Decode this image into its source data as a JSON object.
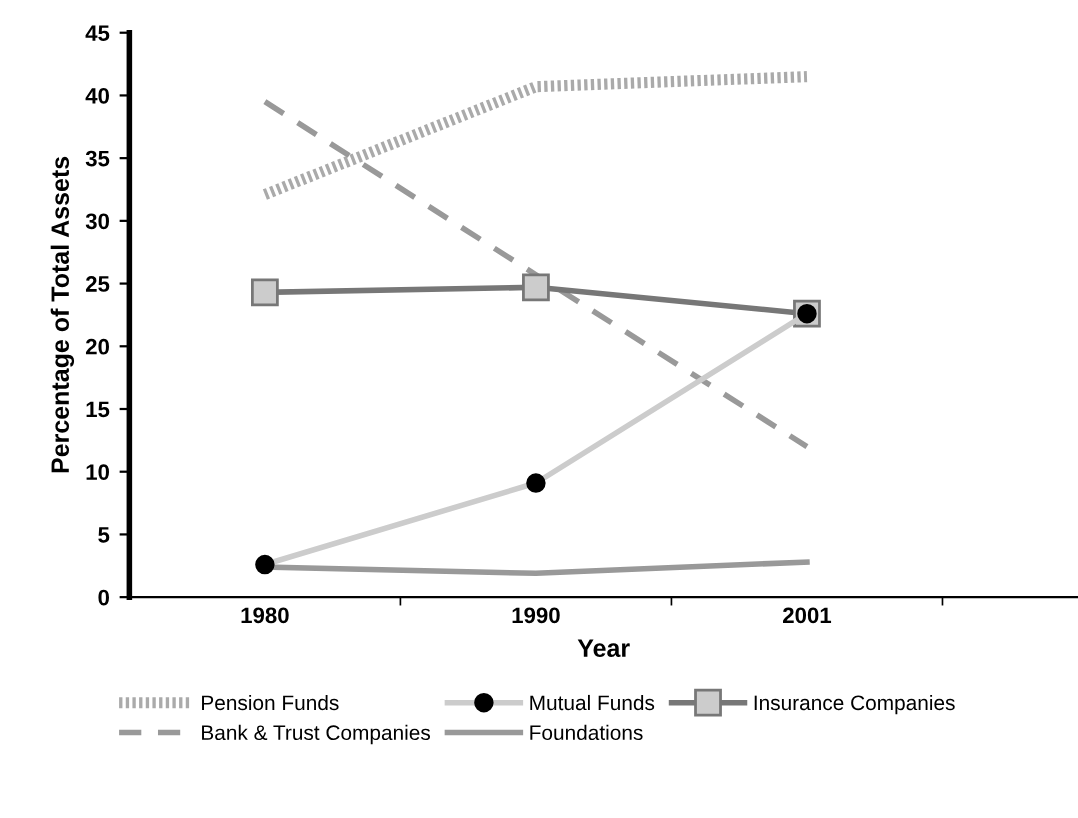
{
  "chart_data": {
    "type": "line",
    "xlabel": "Year",
    "ylabel": "Percentage of Total Assets",
    "categories": [
      "1980",
      "1990",
      "2001"
    ],
    "ylim": [
      0,
      45
    ],
    "yticks": [
      0,
      5,
      10,
      15,
      20,
      25,
      30,
      35,
      40,
      45
    ],
    "grid": false,
    "legend": "bottom",
    "series": [
      {
        "name": "Pension Funds",
        "color": "#aaaaaa",
        "line_style": "dotted",
        "marker": "none",
        "values": [
          32.1,
          40.7,
          41.5
        ]
      },
      {
        "name": "Bank & Trust Companies",
        "color": "#999999",
        "line_style": "dashed",
        "marker": "none",
        "values": [
          39.5,
          25.7,
          12.0
        ]
      },
      {
        "name": "Mutual Funds",
        "color": "#cccccc",
        "line_style": "solid",
        "marker": "circle",
        "values": [
          2.6,
          9.1,
          22.6
        ]
      },
      {
        "name": "Foundations",
        "color": "#999999",
        "line_style": "solid",
        "marker": "none",
        "values": [
          2.4,
          1.9,
          2.8
        ]
      },
      {
        "name": "Insurance Companies",
        "color": "#777777",
        "line_style": "solid",
        "marker": "square",
        "values": [
          24.3,
          24.7,
          22.6
        ]
      }
    ]
  }
}
